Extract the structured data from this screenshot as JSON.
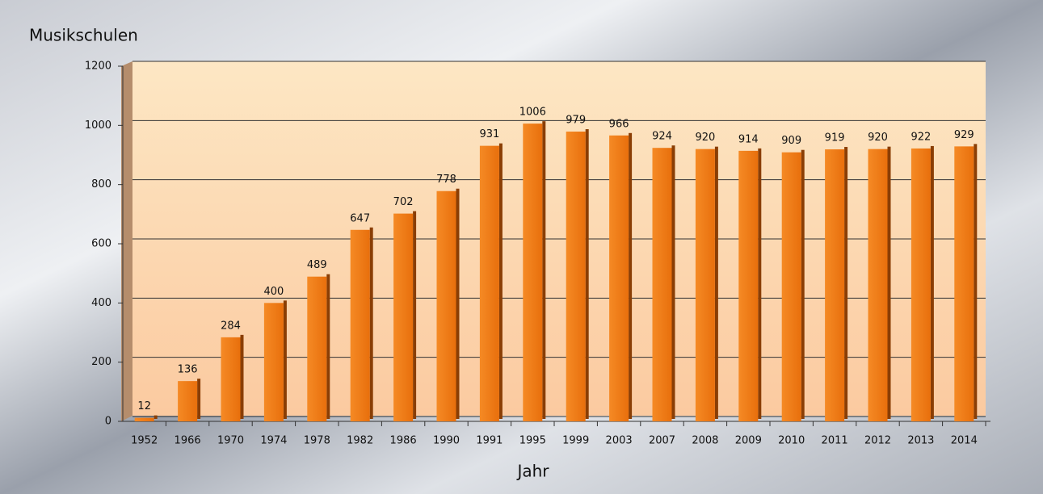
{
  "chart_data": {
    "type": "bar",
    "y_label": "Musikschulen",
    "x_label": "Jahr",
    "categories": [
      "1952",
      "1966",
      "1970",
      "1974",
      "1978",
      "1982",
      "1986",
      "1990",
      "1991",
      "1995",
      "1999",
      "2003",
      "2007",
      "2008",
      "2009",
      "2010",
      "2011",
      "2012",
      "2013",
      "2014"
    ],
    "values": [
      12,
      136,
      284,
      400,
      489,
      647,
      702,
      778,
      931,
      1006,
      979,
      966,
      924,
      920,
      914,
      909,
      919,
      920,
      922,
      929
    ],
    "color": "#f07d1a",
    "ylim": [
      0,
      1200
    ],
    "yticks": [
      0,
      200,
      400,
      600,
      800,
      1000,
      1200
    ],
    "grid": true
  }
}
